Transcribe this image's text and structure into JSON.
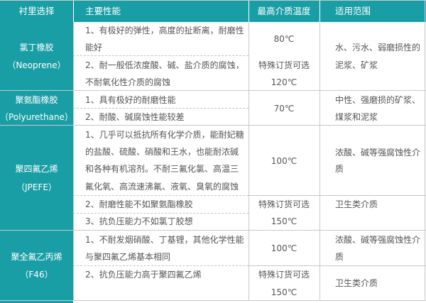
{
  "colors": {
    "header_bg": "#1a9ea6",
    "text": "#555555",
    "grid": "#c8c8c8"
  },
  "header": [
    "衬里选择",
    "主要性能",
    "最高介质温度",
    "适用范围"
  ],
  "rows": [
    {
      "lining": [
        "氯丁橡胶",
        "（Neoprene）"
      ],
      "properties": [
        [
          "1、有极好的弹性，高度的扯断离，耐磨性",
          "能好"
        ],
        [
          "2、耐一般低浓度酸、碱、盐介质的腐蚀，",
          "不耐氧化性介质的腐蚀"
        ]
      ],
      "temperature": [
        "80℃",
        "特殊订货可选",
        "120℃"
      ],
      "application": [
        "水、污水、弱磨损性的",
        "泥浆、矿浆"
      ]
    },
    {
      "lining": [
        "聚氨酯橡胶",
        "（Polyurethane）"
      ],
      "properties": [
        [
          "1、具有极好的耐磨性能"
        ],
        [
          "2、耐酸、碱腐蚀性能较差"
        ]
      ],
      "temperature": [
        "70℃"
      ],
      "application": [
        "中性、强磨损的矿浆、",
        "煤浆和泥浆"
      ]
    },
    {
      "lining": [
        "聚四氟乙烯",
        "（JPEFE）"
      ],
      "properties": [
        [
          "1、几乎可以抵抗所有化学介质，能耐妃糖",
          "的盐酸、硫酸、硝酸和王水，也能耐浓碱",
          "和各种有机溶剂。不耐三氟化氯、高温三",
          "氟化氧、高流速沸氟、液氧、臭氧的腐蚀"
        ],
        [
          "2、耐磨性能不如聚氨酯橡胶"
        ],
        [
          "3、抗负压能力不如氯丁胶想"
        ]
      ],
      "temperature": [
        "100℃",
        "特殊订货可选",
        "150℃"
      ],
      "application": [
        "浓酸、碱等强腐蚀性介",
        "质",
        "卫生类介质"
      ]
    },
    {
      "lining": [
        "聚全氟乙丙烯",
        "（F46）"
      ],
      "properties": [
        [
          "1、不耐发烟硝酸、丁基锂，其他化学性能",
          "与聚四氟乙烯基本相同"
        ],
        [
          "2、抗负压能力高于聚四氟乙烯"
        ]
      ],
      "temperature": [
        "100℃",
        "特殊订货可选",
        "150℃"
      ],
      "application": [
        "浓酸、碱等强腐蚀性介",
        "质",
        "卫生类介质"
      ]
    }
  ]
}
